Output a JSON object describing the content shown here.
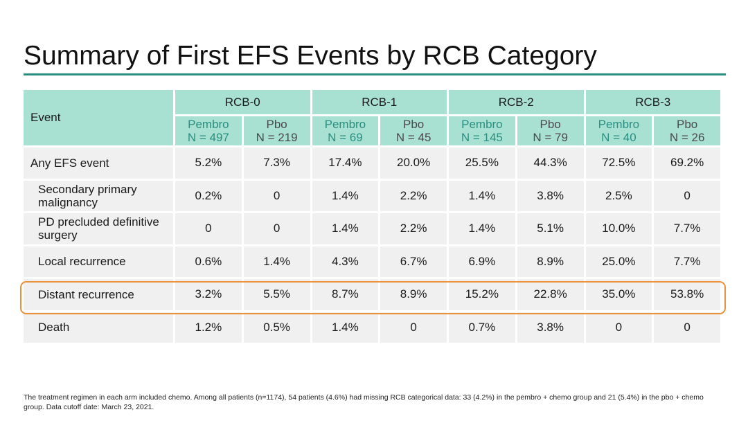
{
  "title": "Summary of First EFS Events by RCB Category",
  "table": {
    "event_header": "Event",
    "groups": [
      {
        "label": "RCB-0",
        "arms": [
          {
            "name": "Pembro",
            "n": "N = 497"
          },
          {
            "name": "Pbo",
            "n": "N = 219"
          }
        ]
      },
      {
        "label": "RCB-1",
        "arms": [
          {
            "name": "Pembro",
            "n": "N = 69"
          },
          {
            "name": "Pbo",
            "n": "N = 45"
          }
        ]
      },
      {
        "label": "RCB-2",
        "arms": [
          {
            "name": "Pembro",
            "n": "N = 145"
          },
          {
            "name": "Pbo",
            "n": "N = 79"
          }
        ]
      },
      {
        "label": "RCB-3",
        "arms": [
          {
            "name": "Pembro",
            "n": "N = 40"
          },
          {
            "name": "Pbo",
            "n": "N = 26"
          }
        ]
      }
    ],
    "rows": [
      {
        "label": "Any EFS event",
        "values": [
          "5.2%",
          "7.3%",
          "17.4%",
          "20.0%",
          "25.5%",
          "44.3%",
          "72.5%",
          "69.2%"
        ]
      },
      {
        "label": "Secondary primary malignancy",
        "values": [
          "0.2%",
          "0",
          "1.4%",
          "2.2%",
          "1.4%",
          "3.8%",
          "2.5%",
          "0"
        ]
      },
      {
        "label": "PD precluded definitive surgery",
        "values": [
          "0",
          "0",
          "1.4%",
          "2.2%",
          "1.4%",
          "5.1%",
          "10.0%",
          "7.7%"
        ]
      },
      {
        "label": "Local recurrence",
        "values": [
          "0.6%",
          "1.4%",
          "4.3%",
          "6.7%",
          "6.9%",
          "8.9%",
          "25.0%",
          "7.7%"
        ]
      },
      {
        "label": "Distant recurrence",
        "values": [
          "3.2%",
          "5.5%",
          "8.7%",
          "8.9%",
          "15.2%",
          "22.8%",
          "35.0%",
          "53.8%"
        ]
      },
      {
        "label": "Death",
        "values": [
          "1.2%",
          "0.5%",
          "1.4%",
          "0",
          "0.7%",
          "3.8%",
          "0",
          "0"
        ]
      }
    ]
  },
  "footnote": "The treatment regimen in each arm included chemo. Among all patients (n=1174), 54 patients (4.6%) had missing RCB categorical data: 33 (4.2%) in the pembro + chemo group and 21 (5.4%) in the pbo + chemo group. Data cutoff date: March 23, 2021.",
  "colors": {
    "accent": "#2a8f80",
    "header_fill": "#a8e0d2",
    "cell_fill": "#f0f0f0",
    "highlight": "#e8903a"
  }
}
